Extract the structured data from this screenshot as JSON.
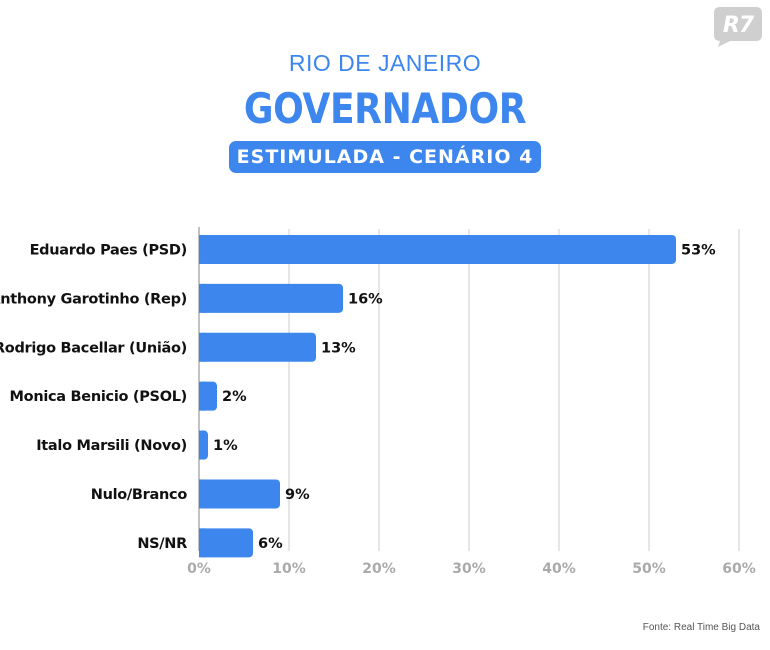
{
  "header": {
    "region": "RIO DE JANEIRO",
    "title": "GOVERNADOR",
    "badge": "ESTIMULADA - CENÁRIO 4"
  },
  "logo": {
    "text": "R7",
    "color": "#cfcfcf"
  },
  "source": "Fonte: Real Time Big Data",
  "colors": {
    "accent": "#3d86ee",
    "bar": "#3d86ee",
    "grid": "#cccccc",
    "tick": "#aaaaaa"
  },
  "chart_data": {
    "type": "bar",
    "orientation": "horizontal",
    "categories": [
      "Eduardo Paes (PSD)",
      "Anthony Garotinho (Rep)",
      "Rodrigo Bacellar (União)",
      "Monica Benicio (PSOL)",
      "Italo Marsili (Novo)",
      "Nulo/Branco",
      "NS/NR"
    ],
    "values": [
      53,
      16,
      13,
      2,
      1,
      9,
      6
    ],
    "value_labels": [
      "53%",
      "16%",
      "13%",
      "2%",
      "1%",
      "9%",
      "6%"
    ],
    "xlim": [
      0,
      60
    ],
    "xticks": [
      0,
      10,
      20,
      30,
      40,
      50,
      60
    ],
    "xtick_labels": [
      "0%",
      "10%",
      "20%",
      "30%",
      "40%",
      "50%",
      "60%"
    ],
    "grid": true,
    "legend": "none"
  }
}
